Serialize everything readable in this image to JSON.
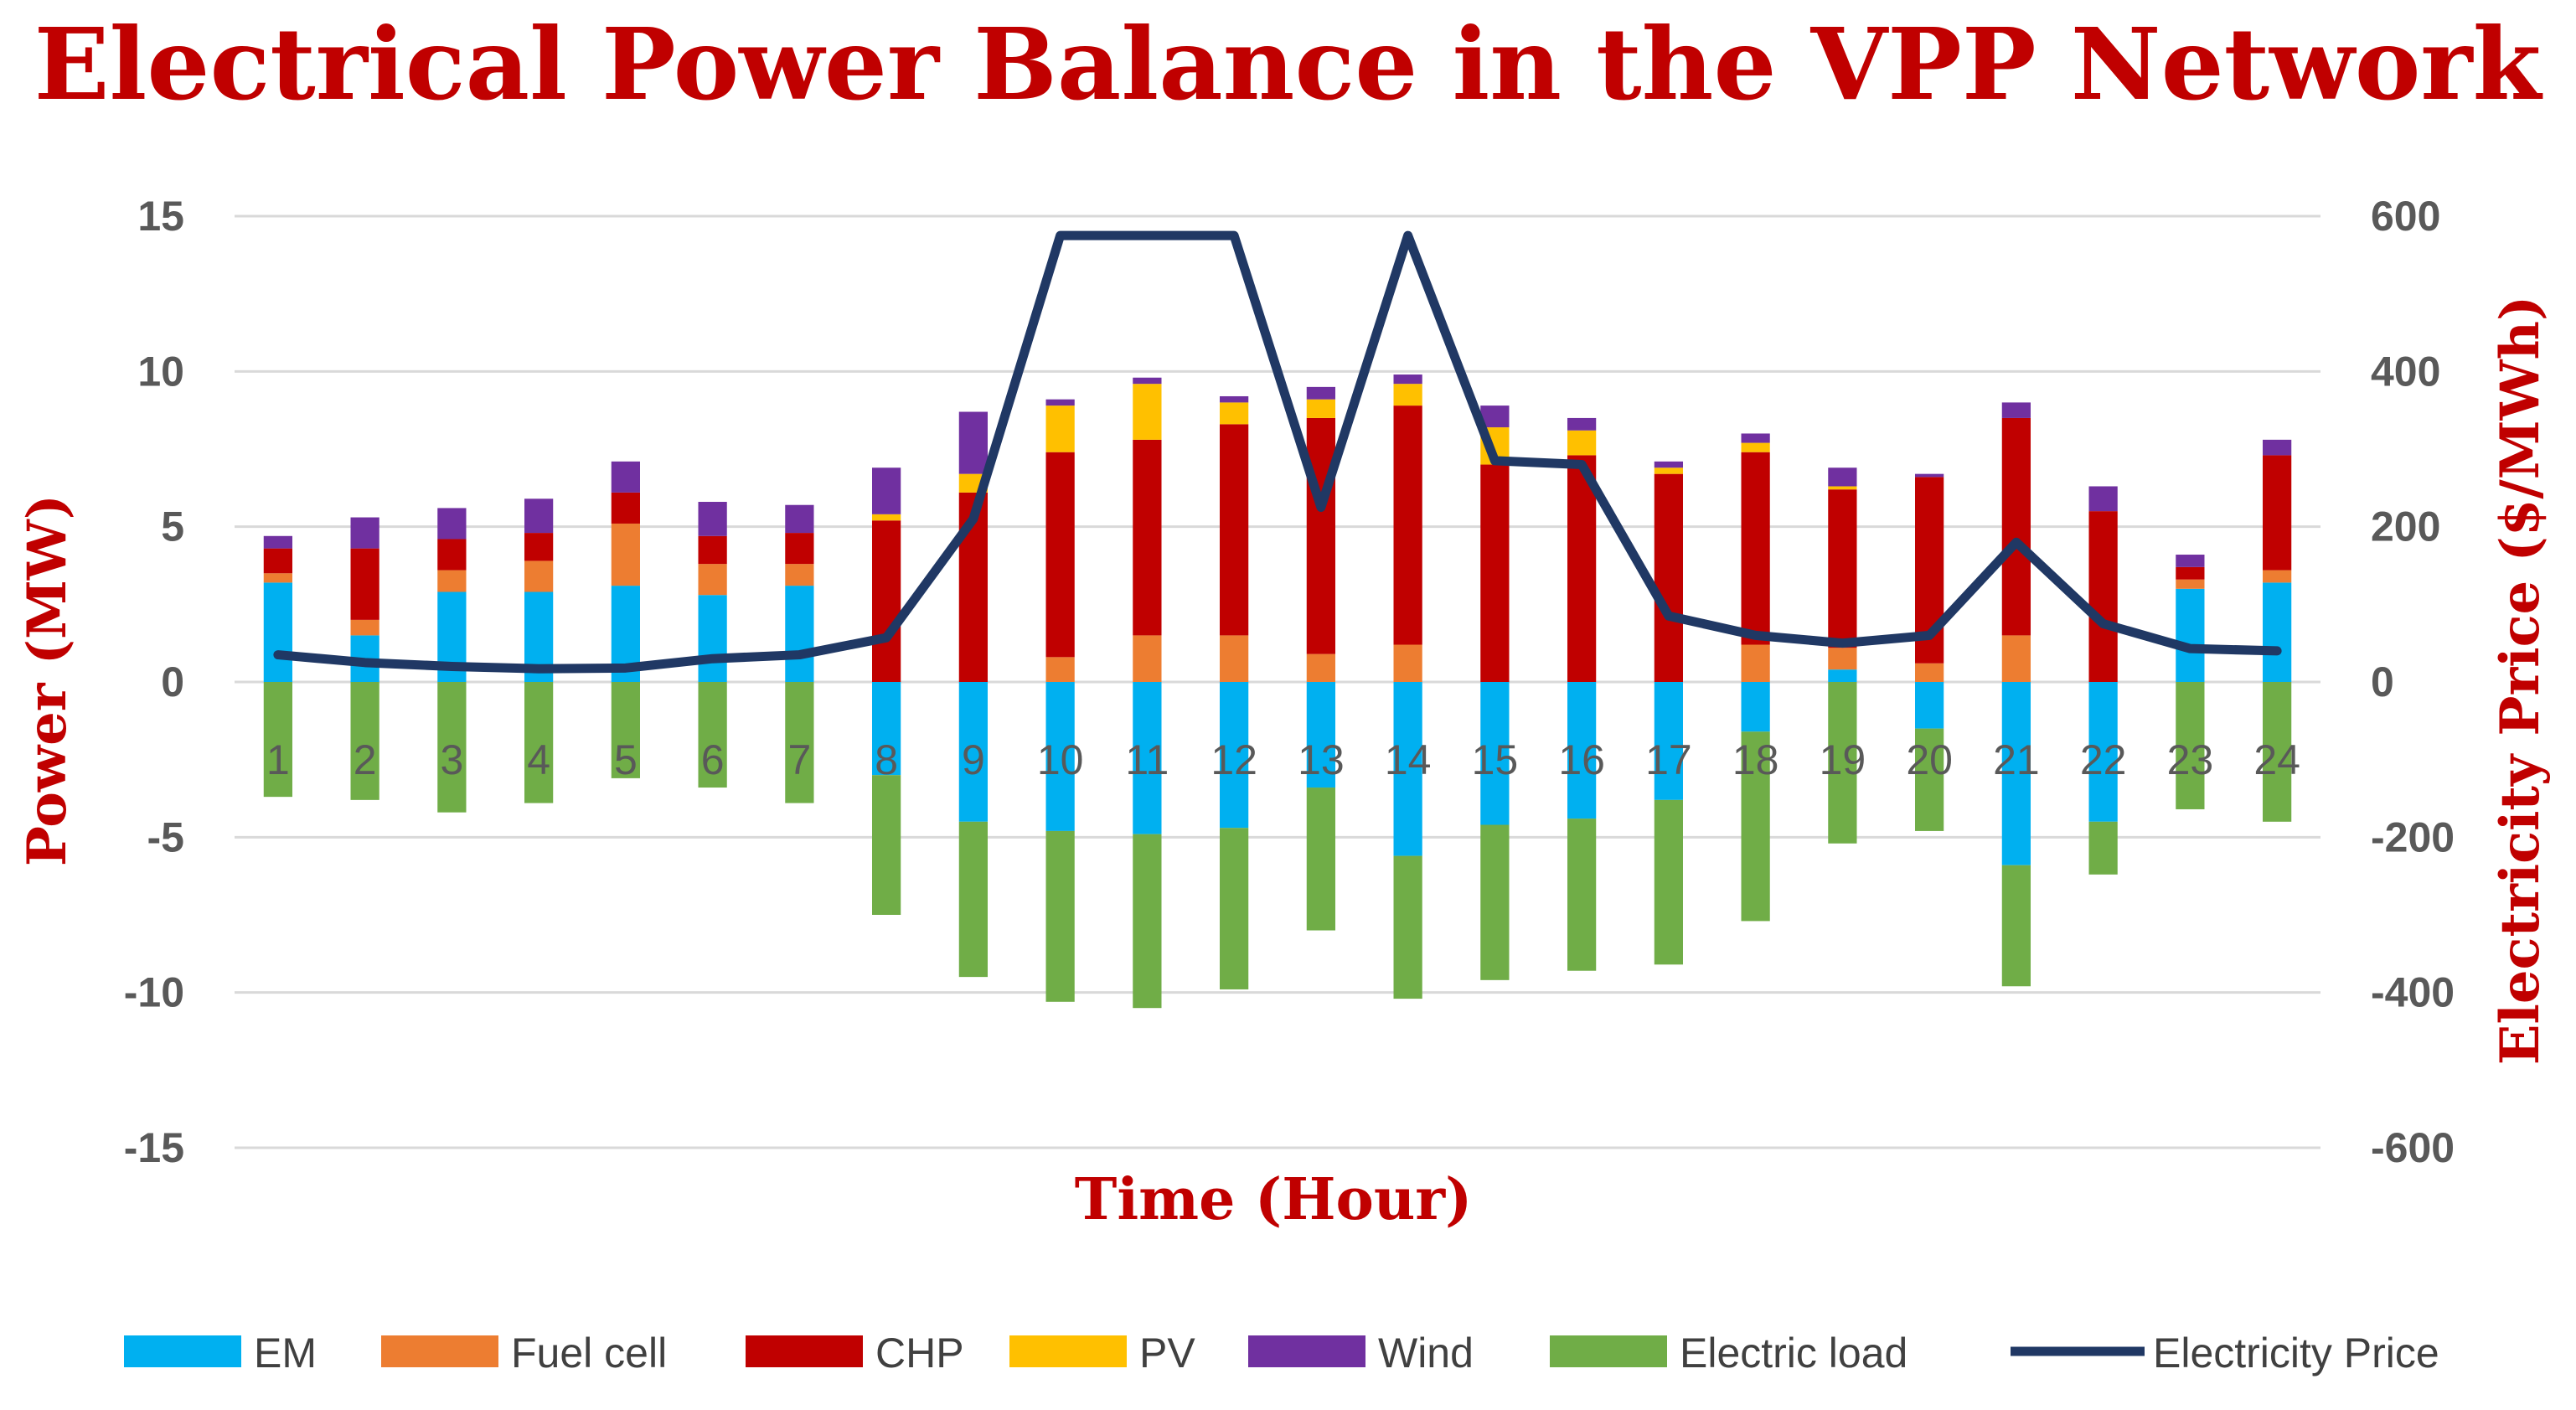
{
  "chart_data": {
    "type": "bar",
    "title": "Electrical Power Balance in the VPP Network",
    "xlabel": "Time (Hour)",
    "ylabel": "Power (MW)",
    "y2label": "Electricity Price ($/MWh)",
    "ylim": [
      -15,
      15
    ],
    "y2lim": [
      -600,
      600
    ],
    "yticks": [
      "15",
      "10",
      "5",
      "0",
      "-5",
      "-10",
      "-15"
    ],
    "y2ticks": [
      "600",
      "400",
      "200",
      "0",
      "-200",
      "-400",
      "-600"
    ],
    "categories": [
      "1",
      "2",
      "3",
      "4",
      "5",
      "6",
      "7",
      "8",
      "9",
      "10",
      "11",
      "12",
      "13",
      "14",
      "15",
      "16",
      "17",
      "18",
      "19",
      "20",
      "21",
      "22",
      "23",
      "24"
    ],
    "series": [
      {
        "name": "EM",
        "color": "#00b0f0",
        "values": [
          3.2,
          1.5,
          2.9,
          2.9,
          3.1,
          2.8,
          3.1,
          -3.0,
          -4.5,
          -4.8,
          -4.9,
          -4.7,
          -3.4,
          -5.6,
          -4.6,
          -4.4,
          -3.8,
          -1.6,
          0.4,
          -1.5,
          -5.9,
          -4.5,
          3.0,
          3.2
        ]
      },
      {
        "name": "Fuel cell",
        "color": "#ed7d31",
        "values": [
          0.3,
          0.5,
          0.7,
          1.0,
          2.0,
          1.0,
          0.7,
          0.0,
          0.0,
          0.8,
          1.5,
          1.5,
          0.9,
          1.2,
          0.0,
          0.0,
          0.0,
          1.2,
          0.7,
          0.6,
          1.5,
          0.0,
          0.3,
          0.4
        ]
      },
      {
        "name": "CHP",
        "color": "#c00000",
        "values": [
          0.8,
          2.3,
          1.0,
          0.9,
          1.0,
          0.9,
          1.0,
          5.2,
          6.1,
          6.6,
          6.3,
          6.8,
          7.6,
          7.7,
          7.0,
          7.3,
          6.7,
          6.2,
          5.1,
          6.0,
          7.0,
          5.5,
          0.4,
          3.7
        ]
      },
      {
        "name": "PV",
        "color": "#ffc000",
        "values": [
          0.0,
          0.0,
          0.0,
          0.0,
          0.0,
          0.0,
          0.0,
          0.2,
          0.6,
          1.5,
          1.8,
          0.7,
          0.6,
          0.7,
          1.2,
          0.8,
          0.2,
          0.3,
          0.1,
          0.0,
          0.0,
          0.0,
          0.0,
          0.0
        ]
      },
      {
        "name": "Wind",
        "color": "#7030a0",
        "values": [
          0.4,
          1.0,
          1.0,
          1.1,
          1.0,
          1.1,
          0.9,
          1.5,
          2.0,
          0.2,
          0.2,
          0.2,
          0.4,
          0.3,
          0.7,
          0.4,
          0.2,
          0.3,
          0.6,
          0.1,
          0.5,
          0.8,
          0.4,
          0.5
        ]
      },
      {
        "name": "Electric load",
        "color": "#70ad47",
        "values": [
          -3.7,
          -3.8,
          -4.2,
          -3.9,
          -3.1,
          -3.4,
          -3.9,
          -4.5,
          -5.0,
          -5.5,
          -5.6,
          -5.2,
          -4.6,
          -4.6,
          -5.0,
          -4.9,
          -5.3,
          -6.1,
          -5.2,
          -3.3,
          -3.9,
          -1.7,
          -4.1,
          -4.5
        ]
      }
    ],
    "line": {
      "name": "Electricity Price",
      "color": "#203864",
      "values": [
        35,
        25,
        20,
        17,
        18,
        30,
        35,
        57,
        210,
        575,
        575,
        575,
        225,
        575,
        285,
        280,
        85,
        60,
        50,
        60,
        180,
        75,
        43,
        40
      ]
    },
    "legend_position": "bottom",
    "grid": true
  }
}
